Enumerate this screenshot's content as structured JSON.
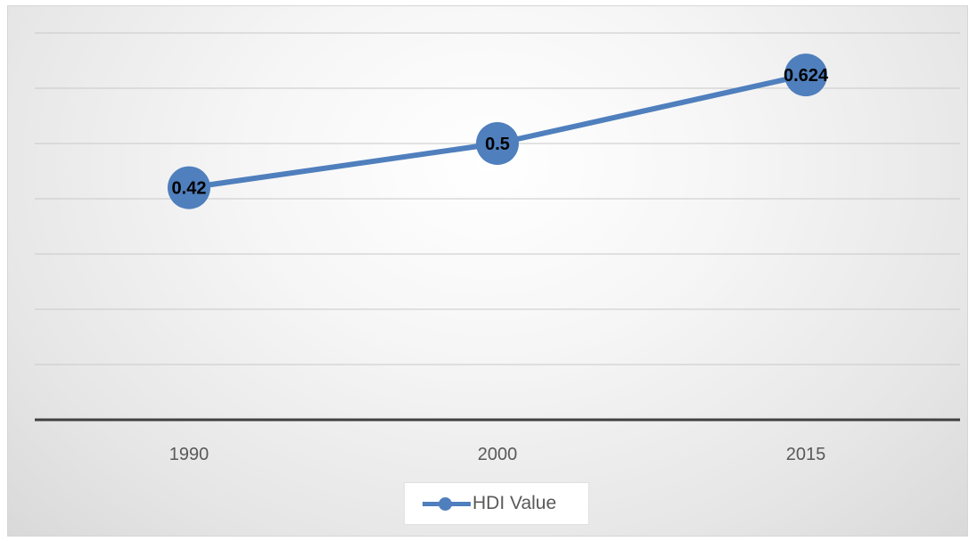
{
  "chart_data": {
    "type": "line",
    "categories": [
      "1990",
      "2000",
      "2015"
    ],
    "series": [
      {
        "name": "HDI Value",
        "values": [
          0.42,
          0.5,
          0.624
        ],
        "data_labels": [
          "0.42",
          "0.5",
          "0.624"
        ],
        "color": "#4f7fbd"
      }
    ],
    "ylim": [
      0,
      0.7
    ],
    "y_gridline_step": 0.1,
    "y_axis_labels_visible": false,
    "grid": true,
    "legend": "bottom",
    "background": "radial-gradient-gray"
  }
}
